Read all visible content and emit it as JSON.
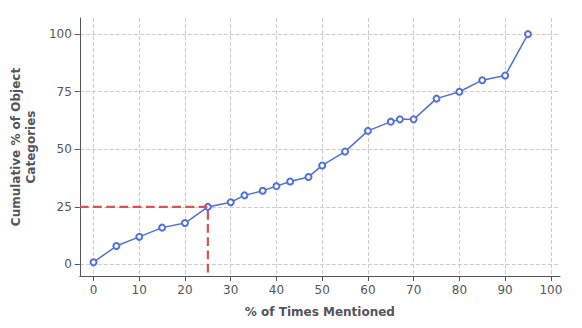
{
  "chart_data": {
    "type": "line",
    "x": [
      0,
      5,
      10,
      15,
      20,
      25,
      30,
      33,
      37,
      40,
      43,
      47,
      50,
      55,
      60,
      65,
      67,
      70,
      75,
      80,
      85,
      90,
      95
    ],
    "values": [
      1,
      8,
      12,
      16,
      18,
      25,
      27,
      30,
      32,
      34,
      36,
      38,
      43,
      49,
      58,
      62,
      63,
      63,
      72,
      75,
      80,
      82,
      100
    ],
    "marker": "circle",
    "x_label": "% of Times Mentioned",
    "y_label": "Cumulative % of Object\nCategories",
    "xlim": [
      -3,
      102
    ],
    "ylim": [
      -5,
      107
    ],
    "xticks": [
      0,
      10,
      20,
      30,
      40,
      50,
      60,
      70,
      80,
      90,
      100
    ],
    "yticks": [
      0,
      25,
      50,
      75,
      100
    ],
    "grid": true,
    "reference": {
      "x": 25,
      "y": 25,
      "color": "#e05050",
      "line_style": "dashed"
    }
  }
}
